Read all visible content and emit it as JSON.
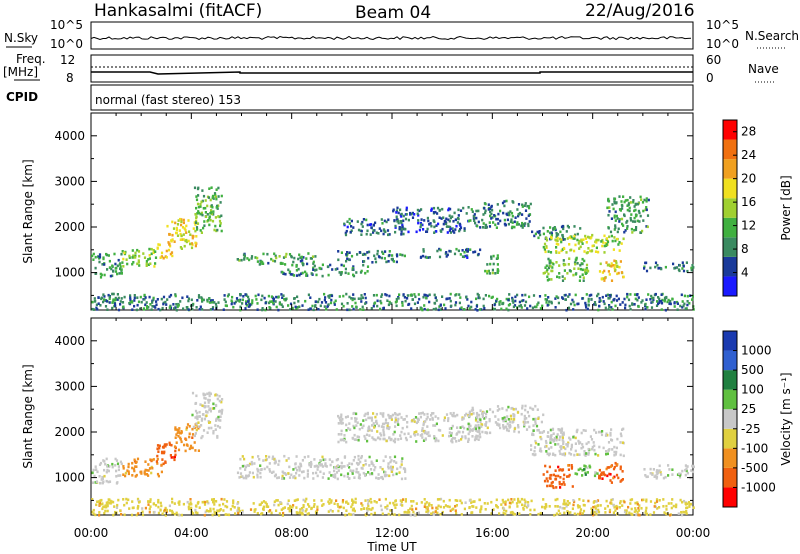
{
  "header": {
    "station": "Hankasalmi (fitACF)",
    "beam": "Beam 04",
    "date": "22/Aug/2016"
  },
  "strips": {
    "nsky_label": "N.Sky",
    "nsky_ticks": [
      "10^5",
      "10^0"
    ],
    "nsearch_label": "N.Search",
    "nsearch_ticks": [
      "10^5",
      "10^0"
    ],
    "freq_label_1": "Freq.",
    "freq_label_2": "[MHz]",
    "freq_ticks": [
      "12",
      "8"
    ],
    "nave_label": "Nave",
    "nave_ticks": [
      "60",
      "0"
    ],
    "cpid_label": "CPID",
    "cpid_text": "normal (fast stereo) 153"
  },
  "colors": {
    "power_scale": [
      "#1a1aff",
      "#1a3a9a",
      "#3a8a60",
      "#40b040",
      "#a0d030",
      "#f0e020",
      "#f0a020",
      "#f07010",
      "#ff0000"
    ],
    "velocity_scale": [
      "#1a3ab0",
      "#3060d0",
      "#208040",
      "#60c040",
      "#c8c8c8",
      "#e0d040",
      "#f09020",
      "#f06010",
      "#ff0000"
    ]
  },
  "chart_data": [
    {
      "type": "heatmap",
      "name": "power",
      "xlabel": "Time UT",
      "ylabel": "Slant Range [km]",
      "ylim": [
        180,
        4500
      ],
      "yticks": [
        1000,
        2000,
        3000,
        4000
      ],
      "xlim": [
        0,
        24
      ],
      "xticks": [
        "00:00",
        "04:00",
        "08:00",
        "12:00",
        "16:00",
        "20:00",
        "00:00"
      ],
      "colorbar": {
        "label": "Power [dB]",
        "ticks": [
          "4",
          "8",
          "12",
          "16",
          "20",
          "24",
          "28"
        ],
        "range": [
          0,
          30
        ]
      },
      "blobs": [
        {
          "t0": 0.0,
          "t1": 1.2,
          "r0": 900,
          "r1": 1450,
          "level": 9
        },
        {
          "t0": 1.2,
          "t1": 2.6,
          "r0": 1150,
          "r1": 1550,
          "level": 14
        },
        {
          "t0": 2.6,
          "t1": 3.2,
          "r0": 1300,
          "r1": 1700,
          "level": 20
        },
        {
          "t0": 3.0,
          "t1": 3.6,
          "r0": 1700,
          "r1": 2200,
          "level": 18
        },
        {
          "t0": 3.5,
          "t1": 4.2,
          "r0": 1500,
          "r1": 2200,
          "level": 18
        },
        {
          "t0": 4.1,
          "t1": 5.2,
          "r0": 1900,
          "r1": 2900,
          "level": 12
        },
        {
          "t0": 5.8,
          "t1": 9.0,
          "r0": 1200,
          "r1": 1450,
          "level": 10
        },
        {
          "t0": 7.5,
          "t1": 11.0,
          "r0": 950,
          "r1": 1200,
          "level": 9
        },
        {
          "t0": 9.8,
          "t1": 12.5,
          "r0": 1250,
          "r1": 1500,
          "level": 8
        },
        {
          "t0": 10.0,
          "t1": 12.5,
          "r0": 1850,
          "r1": 2200,
          "level": 7
        },
        {
          "t0": 12.0,
          "t1": 15.0,
          "r0": 1900,
          "r1": 2450,
          "level": 6
        },
        {
          "t0": 13.0,
          "t1": 15.5,
          "r0": 1350,
          "r1": 1550,
          "level": 7
        },
        {
          "t0": 15.0,
          "t1": 17.5,
          "r0": 2000,
          "r1": 2600,
          "level": 8
        },
        {
          "t0": 15.6,
          "t1": 16.2,
          "r0": 1000,
          "r1": 1450,
          "level": 11
        },
        {
          "t0": 17.5,
          "t1": 19.5,
          "r0": 1750,
          "r1": 2050,
          "level": 8
        },
        {
          "t0": 18.0,
          "t1": 21.2,
          "r0": 1450,
          "r1": 1850,
          "level": 16
        },
        {
          "t0": 18.0,
          "t1": 19.8,
          "r0": 850,
          "r1": 1350,
          "level": 12
        },
        {
          "t0": 20.2,
          "t1": 21.2,
          "r0": 850,
          "r1": 1300,
          "level": 18
        },
        {
          "t0": 20.5,
          "t1": 22.2,
          "r0": 1900,
          "r1": 2700,
          "level": 10
        },
        {
          "t0": 22.0,
          "t1": 24.0,
          "r0": 1050,
          "r1": 1250,
          "level": 7
        },
        {
          "t0": 0.0,
          "t1": 24.0,
          "r0": 200,
          "r1": 560,
          "level": 8
        }
      ]
    },
    {
      "type": "heatmap",
      "name": "velocity",
      "xlabel": "Time UT",
      "ylabel": "Slant Range [km]",
      "ylim": [
        180,
        4500
      ],
      "yticks": [
        1000,
        2000,
        3000,
        4000
      ],
      "xlim": [
        0,
        24
      ],
      "xticks": [
        "00:00",
        "04:00",
        "08:00",
        "12:00",
        "16:00",
        "20:00",
        "00:00"
      ],
      "colorbar": {
        "label": "Velocity [m s⁻¹]",
        "ticks": [
          "1000",
          "500",
          "100",
          "25",
          "-25",
          "-100",
          "-500",
          "-1000"
        ]
      },
      "blobs": [
        {
          "t0": 0.0,
          "t1": 1.2,
          "r0": 900,
          "r1": 1450,
          "level": 4
        },
        {
          "t0": 1.2,
          "t1": 2.8,
          "r0": 1050,
          "r1": 1450,
          "level": 6
        },
        {
          "t0": 2.6,
          "t1": 3.4,
          "r0": 1300,
          "r1": 1800,
          "level": 7
        },
        {
          "t0": 3.3,
          "t1": 4.3,
          "r0": 1600,
          "r1": 2200,
          "level": 6
        },
        {
          "t0": 4.0,
          "t1": 5.2,
          "r0": 1900,
          "r1": 2900,
          "level": 4
        },
        {
          "t0": 5.8,
          "t1": 12.5,
          "r0": 1000,
          "r1": 1500,
          "level": 4
        },
        {
          "t0": 9.8,
          "t1": 15.5,
          "r0": 1800,
          "r1": 2450,
          "level": 4
        },
        {
          "t0": 15.0,
          "t1": 18.0,
          "r0": 2000,
          "r1": 2600,
          "level": 4
        },
        {
          "t0": 17.5,
          "t1": 21.2,
          "r0": 1500,
          "r1": 2100,
          "level": 4
        },
        {
          "t0": 18.0,
          "t1": 19.2,
          "r0": 800,
          "r1": 1300,
          "level": 7
        },
        {
          "t0": 19.2,
          "t1": 20.2,
          "r0": 1050,
          "r1": 1300,
          "level": 3
        },
        {
          "t0": 20.2,
          "t1": 21.2,
          "r0": 900,
          "r1": 1350,
          "level": 7
        },
        {
          "t0": 22.0,
          "t1": 24.0,
          "r0": 1000,
          "r1": 1300,
          "level": 4
        },
        {
          "t0": 0.0,
          "t1": 24.0,
          "r0": 200,
          "r1": 560,
          "level": 5
        }
      ]
    }
  ]
}
